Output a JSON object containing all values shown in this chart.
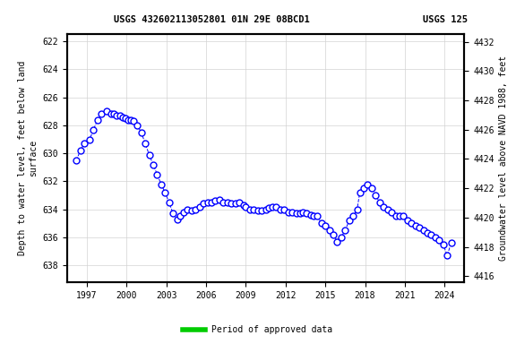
{
  "title_left": "USGS 432602113052801 01N 29E 08BCD1",
  "title_right": "USGS 125",
  "ylabel_left": "Depth to water level, feet below land\nsurface",
  "ylabel_right": "Groundwater level above NAVD 1988, feet",
  "ylim_left": [
    639.2,
    621.5
  ],
  "ylim_right": [
    4415.6,
    4432.5
  ],
  "yticks_left": [
    622,
    624,
    626,
    628,
    630,
    632,
    634,
    636,
    638
  ],
  "yticks_right": [
    4416,
    4418,
    4420,
    4422,
    4424,
    4426,
    4428,
    4430,
    4432
  ],
  "xticks": [
    1997,
    2000,
    2003,
    2006,
    2009,
    2012,
    2015,
    2018,
    2021,
    2024
  ],
  "xlim": [
    1995.5,
    2025.5
  ],
  "line_color": "blue",
  "marker_color": "blue",
  "marker_face": "white",
  "legend_label": "Period of approved data",
  "legend_color": "#00cc00",
  "data_x": [
    1996.2,
    1996.5,
    1996.8,
    1997.2,
    1997.5,
    1997.8,
    1998.1,
    1998.5,
    1998.8,
    1999.0,
    1999.2,
    1999.5,
    1999.7,
    1999.9,
    2000.1,
    2000.3,
    2000.5,
    2000.8,
    2001.1,
    2001.4,
    2001.7,
    2002.0,
    2002.3,
    2002.6,
    2002.9,
    2003.2,
    2003.5,
    2003.8,
    2004.0,
    2004.3,
    2004.6,
    2004.9,
    2005.2,
    2005.5,
    2005.8,
    2006.1,
    2006.4,
    2006.7,
    2007.0,
    2007.3,
    2007.6,
    2007.9,
    2008.2,
    2008.5,
    2008.8,
    2009.0,
    2009.3,
    2009.6,
    2009.9,
    2010.2,
    2010.5,
    2010.7,
    2011.0,
    2011.3,
    2011.6,
    2011.9,
    2012.2,
    2012.5,
    2012.8,
    2013.1,
    2013.3,
    2013.6,
    2013.9,
    2014.1,
    2014.4,
    2014.7,
    2015.0,
    2015.3,
    2015.6,
    2015.9,
    2016.2,
    2016.5,
    2016.8,
    2017.1,
    2017.4,
    2017.6,
    2017.9,
    2018.2,
    2018.5,
    2018.8,
    2019.1,
    2019.4,
    2019.7,
    2020.0,
    2020.3,
    2020.6,
    2020.9,
    2021.2,
    2021.5,
    2021.8,
    2022.1,
    2022.4,
    2022.7,
    2023.0,
    2023.3,
    2023.6,
    2023.9,
    2024.2,
    2024.5
  ],
  "data_y": [
    630.5,
    629.8,
    629.3,
    629.0,
    628.3,
    627.6,
    627.2,
    627.0,
    627.2,
    627.2,
    627.3,
    627.3,
    627.4,
    627.5,
    627.6,
    627.6,
    627.7,
    628.0,
    628.5,
    629.3,
    630.1,
    630.8,
    631.5,
    632.2,
    632.8,
    633.5,
    634.3,
    634.7,
    634.5,
    634.2,
    634.0,
    634.1,
    634.0,
    633.8,
    633.6,
    633.5,
    633.5,
    633.4,
    633.3,
    633.5,
    633.5,
    633.6,
    633.6,
    633.5,
    633.7,
    633.8,
    634.0,
    634.0,
    634.1,
    634.1,
    634.0,
    633.9,
    633.8,
    633.8,
    634.0,
    634.0,
    634.2,
    634.2,
    634.3,
    634.3,
    634.2,
    634.3,
    634.4,
    634.5,
    634.5,
    635.0,
    635.2,
    635.5,
    635.8,
    636.3,
    636.0,
    635.5,
    634.8,
    634.5,
    634.0,
    632.8,
    632.5,
    632.2,
    632.5,
    633.0,
    633.5,
    633.8,
    634.0,
    634.2,
    634.5,
    634.5,
    634.5,
    634.8,
    635.0,
    635.2,
    635.3,
    635.5,
    635.7,
    635.8,
    636.0,
    636.2,
    636.5,
    637.3,
    636.4
  ]
}
